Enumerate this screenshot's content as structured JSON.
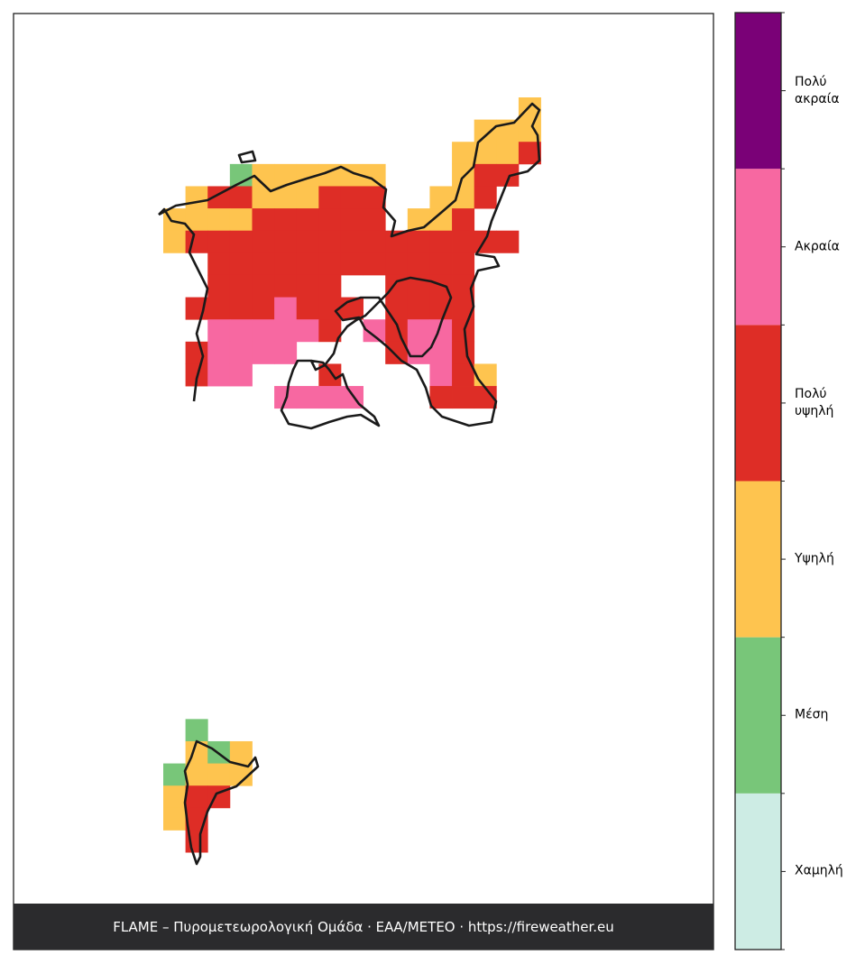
{
  "legend": {
    "levels": [
      {
        "label": "Χαμηλή",
        "color": "#cdece4"
      },
      {
        "label": "Μέση",
        "color": "#78c679"
      },
      {
        "label": "Υψηλή",
        "color": "#fec44f"
      },
      {
        "label": "Πολύ\nυψηλή",
        "color": "#de2d26"
      },
      {
        "label": "Ακραία",
        "color": "#f768a1"
      },
      {
        "label": "Πολύ\nακραία",
        "color": "#7a0177"
      }
    ]
  },
  "cells": [
    [
      null,
      null,
      null,
      null,
      null,
      null,
      null,
      null,
      null,
      null,
      null,
      null,
      null,
      null,
      null,
      null,
      2
    ],
    [
      null,
      null,
      null,
      null,
      null,
      null,
      null,
      null,
      null,
      null,
      null,
      null,
      null,
      null,
      2,
      2,
      2
    ],
    [
      null,
      null,
      null,
      null,
      null,
      null,
      null,
      null,
      null,
      null,
      null,
      null,
      null,
      2,
      2,
      2,
      3
    ],
    [
      null,
      null,
      null,
      1,
      2,
      2,
      2,
      2,
      2,
      2,
      null,
      null,
      null,
      2,
      3,
      3
    ],
    [
      null,
      2,
      3,
      3,
      2,
      2,
      2,
      3,
      3,
      3,
      null,
      null,
      2,
      2,
      3
    ],
    [
      2,
      2,
      2,
      2,
      3,
      3,
      3,
      3,
      3,
      3,
      null,
      2,
      2,
      3
    ],
    [
      2,
      3,
      3,
      3,
      3,
      3,
      3,
      3,
      3,
      3,
      3,
      3,
      3,
      3,
      3,
      3
    ],
    [
      null,
      null,
      3,
      3,
      3,
      3,
      3,
      3,
      3,
      3,
      3,
      3,
      3,
      3
    ],
    [
      null,
      null,
      3,
      3,
      3,
      3,
      3,
      3,
      null,
      null,
      3,
      3,
      3,
      3
    ],
    [
      null,
      3,
      3,
      3,
      3,
      4,
      3,
      3,
      3,
      null,
      3,
      3,
      3,
      3
    ],
    [
      null,
      null,
      4,
      4,
      4,
      4,
      4,
      3,
      null,
      4,
      3,
      4,
      4,
      3
    ],
    [
      null,
      3,
      4,
      4,
      4,
      4,
      null,
      null,
      null,
      null,
      3,
      4,
      4,
      3
    ],
    [
      null,
      3,
      4,
      4,
      null,
      null,
      null,
      3,
      null,
      null,
      null,
      null,
      4,
      3,
      2
    ],
    [
      null,
      null,
      null,
      null,
      null,
      4,
      4,
      4,
      4,
      null,
      null,
      null,
      3,
      3,
      3
    ],
    [],
    [],
    [],
    [],
    [],
    [],
    [],
    [],
    [],
    [],
    [],
    [],
    [],
    [],
    [
      null,
      1
    ],
    [
      null,
      2,
      1,
      2
    ],
    [
      1,
      2,
      2,
      2
    ],
    [
      2,
      3,
      3
    ],
    [
      2,
      3
    ],
    [
      null,
      3
    ]
  ],
  "footer": "FLAME – Πυρομετεωρολογική Ομάδα · ΕΑΑ/METEO · https://fireweather.eu"
}
